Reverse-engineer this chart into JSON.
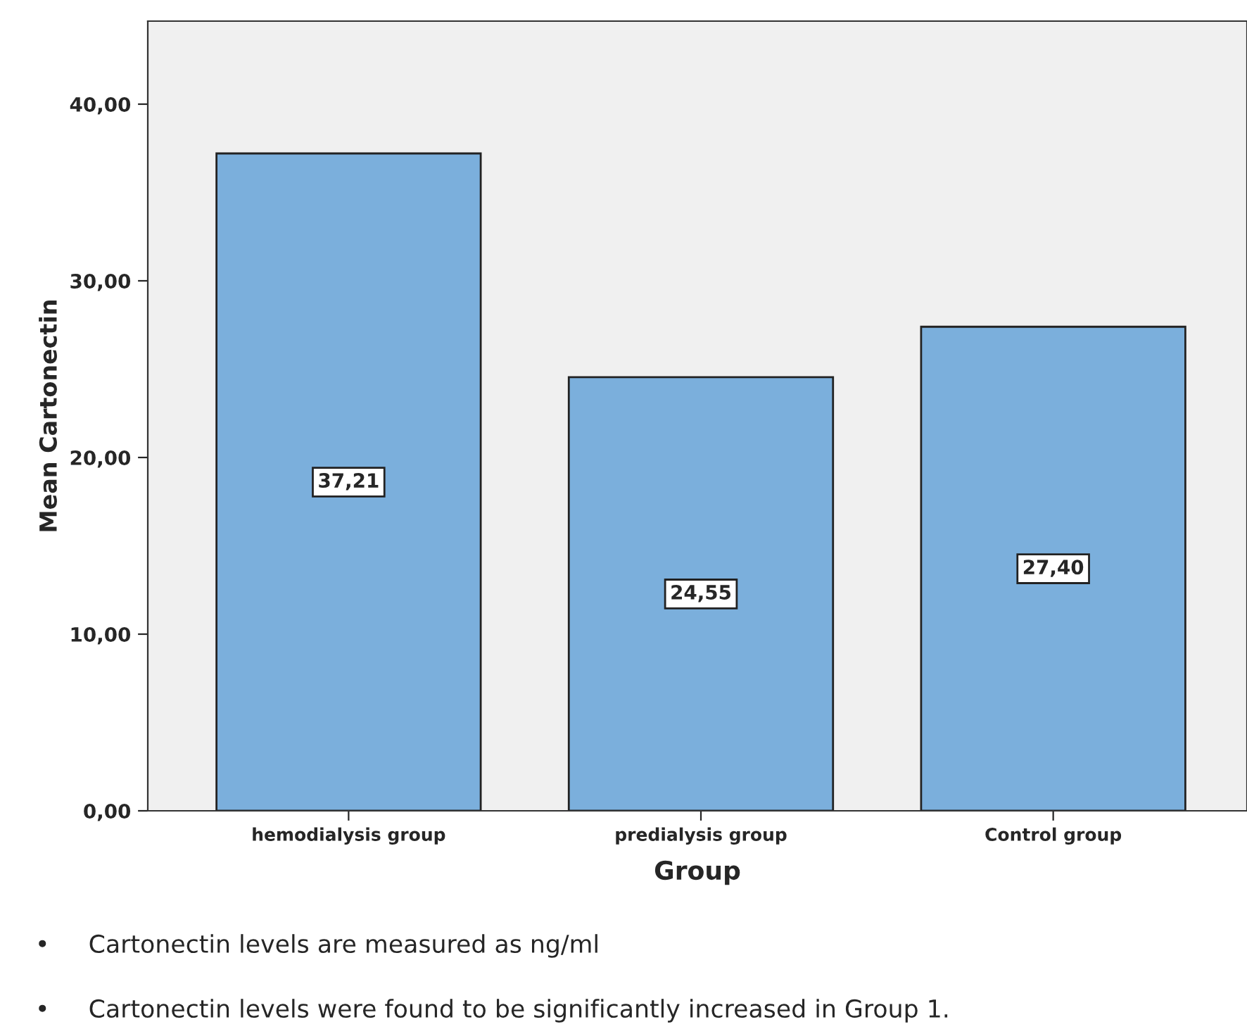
{
  "chart_data": {
    "type": "bar",
    "xlabel": "Group",
    "ylabel": "Mean Cartonectin",
    "categories": [
      "hemodialysis group",
      "predialysis group",
      "Control group"
    ],
    "values": [
      37.21,
      24.55,
      27.4
    ],
    "value_labels": [
      "37,21",
      "24,55",
      "27,40"
    ],
    "color": "#7bafdc",
    "ylim": [
      0,
      44.7
    ],
    "yticks": [
      {
        "value": 0,
        "label": "0,00"
      },
      {
        "value": 10,
        "label": "10,00"
      },
      {
        "value": 20,
        "label": "20,00"
      },
      {
        "value": 30,
        "label": "30,00"
      },
      {
        "value": 40,
        "label": "40,00"
      }
    ],
    "grid": false,
    "annotations": [
      "•     Cartonectin levels are measured as ng/ml",
      "•     Cartonectin levels were found to be significantly increased in Group 1."
    ]
  }
}
